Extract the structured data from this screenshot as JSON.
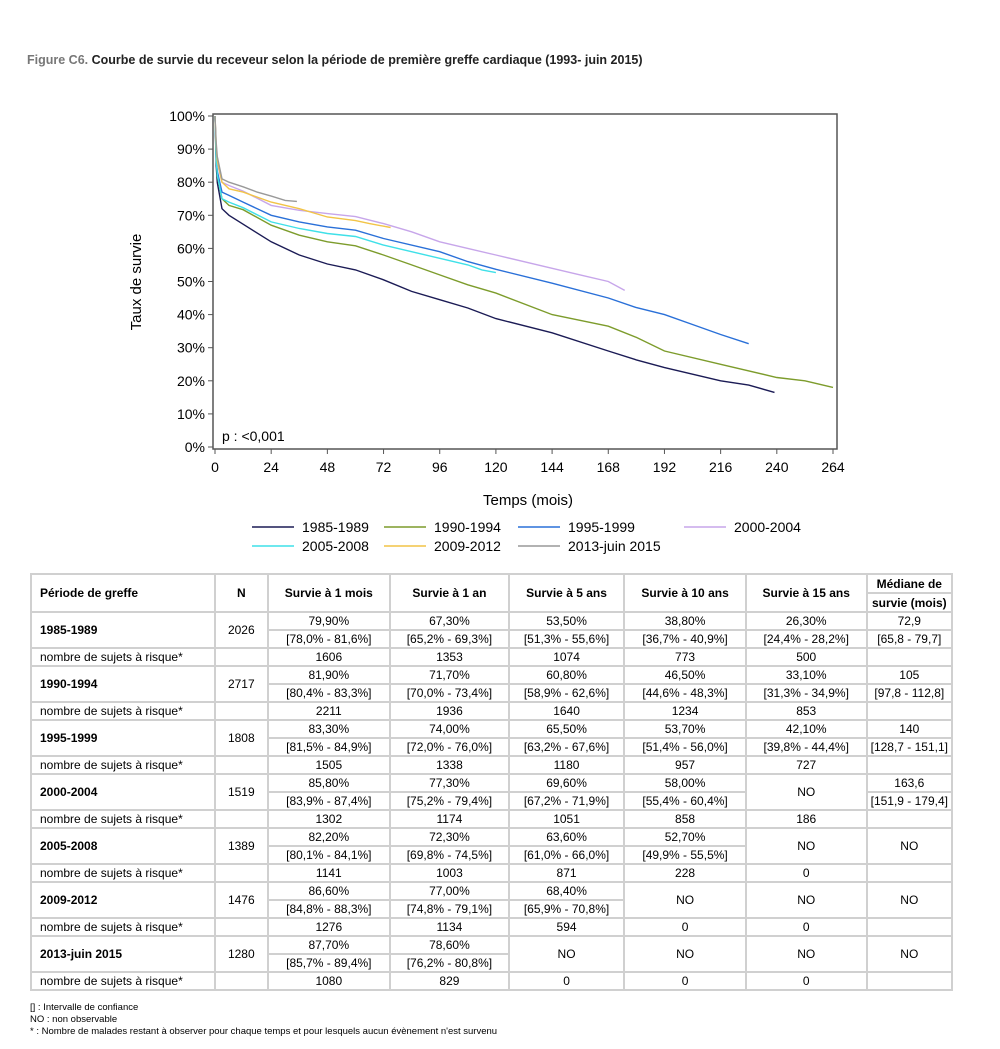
{
  "figure": {
    "label": "Figure C6.",
    "title": "Courbe de survie du receveur selon la période de première greffe cardiaque (1993- juin 2015)"
  },
  "chart_data": {
    "type": "line",
    "title": "Courbe de survie du receveur selon la période de première greffe cardiaque (1993- juin 2015)",
    "xlabel": "Temps (mois)",
    "ylabel": "Taux de survie",
    "xlim": [
      0,
      264
    ],
    "ylim": [
      0,
      100
    ],
    "xticks": [
      0,
      24,
      48,
      72,
      96,
      120,
      144,
      168,
      192,
      216,
      240,
      264
    ],
    "yticks": [
      "0%",
      "10%",
      "20%",
      "30%",
      "40%",
      "50%",
      "60%",
      "70%",
      "80%",
      "90%",
      "100%"
    ],
    "annotation": "p : <0,001",
    "legend_position": "bottom",
    "series": [
      {
        "name": "1985-1989",
        "color": "#1b1b55",
        "points": [
          [
            0,
            100
          ],
          [
            0.5,
            85
          ],
          [
            1,
            79.9
          ],
          [
            3,
            72
          ],
          [
            6,
            70
          ],
          [
            12,
            67.3
          ],
          [
            24,
            62
          ],
          [
            36,
            58
          ],
          [
            48,
            55.3
          ],
          [
            60,
            53.5
          ],
          [
            72,
            50.5
          ],
          [
            84,
            47
          ],
          [
            96,
            44.5
          ],
          [
            108,
            42
          ],
          [
            120,
            38.8
          ],
          [
            144,
            34.5
          ],
          [
            168,
            29
          ],
          [
            180,
            26.3
          ],
          [
            192,
            24
          ],
          [
            216,
            20
          ],
          [
            228,
            18.7
          ],
          [
            239,
            16.5
          ]
        ]
      },
      {
        "name": "1990-1994",
        "color": "#7d9c2c",
        "points": [
          [
            0,
            100
          ],
          [
            0.5,
            88
          ],
          [
            1,
            81.9
          ],
          [
            3,
            75
          ],
          [
            6,
            73
          ],
          [
            12,
            71.7
          ],
          [
            24,
            67
          ],
          [
            36,
            64
          ],
          [
            48,
            62
          ],
          [
            60,
            60.8
          ],
          [
            72,
            58
          ],
          [
            84,
            55
          ],
          [
            96,
            52
          ],
          [
            108,
            49
          ],
          [
            120,
            46.5
          ],
          [
            144,
            40
          ],
          [
            168,
            36.5
          ],
          [
            180,
            33.1
          ],
          [
            192,
            29
          ],
          [
            216,
            25
          ],
          [
            240,
            21
          ],
          [
            252,
            20
          ],
          [
            264,
            18
          ]
        ]
      },
      {
        "name": "1995-1999",
        "color": "#2a70d8",
        "points": [
          [
            0,
            100
          ],
          [
            0.5,
            88
          ],
          [
            1,
            83.3
          ],
          [
            3,
            77
          ],
          [
            6,
            76
          ],
          [
            12,
            74
          ],
          [
            24,
            70
          ],
          [
            36,
            68
          ],
          [
            48,
            66.5
          ],
          [
            60,
            65.5
          ],
          [
            72,
            63
          ],
          [
            96,
            59
          ],
          [
            108,
            56
          ],
          [
            120,
            53.7
          ],
          [
            144,
            49.5
          ],
          [
            168,
            45
          ],
          [
            180,
            42.1
          ],
          [
            192,
            40
          ],
          [
            204,
            37
          ],
          [
            216,
            34
          ],
          [
            228,
            31.2
          ]
        ]
      },
      {
        "name": "2000-2004",
        "color": "#c7a6ea",
        "points": [
          [
            0,
            100
          ],
          [
            0.5,
            90
          ],
          [
            1,
            85.8
          ],
          [
            3,
            80
          ],
          [
            6,
            79
          ],
          [
            12,
            77.3
          ],
          [
            24,
            73
          ],
          [
            36,
            71.5
          ],
          [
            48,
            70.5
          ],
          [
            60,
            69.6
          ],
          [
            72,
            67.5
          ],
          [
            84,
            65
          ],
          [
            96,
            62
          ],
          [
            108,
            60
          ],
          [
            120,
            58
          ],
          [
            144,
            54
          ],
          [
            156,
            52
          ],
          [
            168,
            50
          ],
          [
            175,
            47.3
          ]
        ]
      },
      {
        "name": "2005-2008",
        "color": "#3fe0e8",
        "points": [
          [
            0,
            100
          ],
          [
            0.5,
            87
          ],
          [
            1,
            82.2
          ],
          [
            3,
            75
          ],
          [
            6,
            74
          ],
          [
            12,
            72.3
          ],
          [
            24,
            68
          ],
          [
            36,
            66
          ],
          [
            48,
            64.5
          ],
          [
            60,
            63.6
          ],
          [
            72,
            61
          ],
          [
            84,
            59
          ],
          [
            96,
            57
          ],
          [
            108,
            55
          ],
          [
            114,
            53.5
          ],
          [
            120,
            52.7
          ]
        ]
      },
      {
        "name": "2009-2012",
        "color": "#f2c447",
        "points": [
          [
            0,
            100
          ],
          [
            0.5,
            91
          ],
          [
            1,
            86.6
          ],
          [
            3,
            80
          ],
          [
            6,
            78
          ],
          [
            12,
            77
          ],
          [
            24,
            74
          ],
          [
            36,
            72
          ],
          [
            48,
            69.5
          ],
          [
            60,
            68.4
          ],
          [
            66,
            67.5
          ],
          [
            75,
            66.3
          ]
        ]
      },
      {
        "name": "2013-juin 2015",
        "color": "#999999",
        "points": [
          [
            0,
            100
          ],
          [
            0.5,
            92
          ],
          [
            1,
            87.7
          ],
          [
            3,
            81
          ],
          [
            6,
            80
          ],
          [
            12,
            78.6
          ],
          [
            18,
            77
          ],
          [
            24,
            75.8
          ],
          [
            30,
            74.5
          ],
          [
            35,
            74.2
          ]
        ]
      }
    ]
  },
  "table": {
    "headers": [
      "Période de greffe",
      "N",
      "Survie à 1 mois",
      "Survie à 1 an",
      "Survie à 5 ans",
      "Survie à 10 ans",
      "Survie à 15 ans",
      "Médiane de",
      "survie (mois)"
    ],
    "risk_label": "nombre de sujets à risque*",
    "groups": [
      {
        "period": "1985-1989",
        "n": "2026",
        "values": [
          "79,90%",
          "67,30%",
          "53,50%",
          "38,80%",
          "26,30%",
          "72,9"
        ],
        "ci": [
          "[78,0% - 81,6%]",
          "[65,2% - 69,3%]",
          "[51,3% - 55,6%]",
          "[36,7% - 40,9%]",
          "[24,4% - 28,2%]",
          "[65,8 - 79,7]"
        ],
        "risk": [
          "1606",
          "1353",
          "1074",
          "773",
          "500",
          ""
        ]
      },
      {
        "period": "1990-1994",
        "n": "2717",
        "values": [
          "81,90%",
          "71,70%",
          "60,80%",
          "46,50%",
          "33,10%",
          "105"
        ],
        "ci": [
          "[80,4% - 83,3%]",
          "[70,0% - 73,4%]",
          "[58,9% - 62,6%]",
          "[44,6% - 48,3%]",
          "[31,3% - 34,9%]",
          "[97,8 - 112,8]"
        ],
        "risk": [
          "2211",
          "1936",
          "1640",
          "1234",
          "853",
          ""
        ]
      },
      {
        "period": "1995-1999",
        "n": "1808",
        "values": [
          "83,30%",
          "74,00%",
          "65,50%",
          "53,70%",
          "42,10%",
          "140"
        ],
        "ci": [
          "[81,5% - 84,9%]",
          "[72,0% - 76,0%]",
          "[63,2% - 67,6%]",
          "[51,4% - 56,0%]",
          "[39,8% - 44,4%]",
          "[128,7 - 151,1]"
        ],
        "risk": [
          "1505",
          "1338",
          "1180",
          "957",
          "727",
          ""
        ]
      },
      {
        "period": "2000-2004",
        "n": "1519",
        "values": [
          "85,80%",
          "77,30%",
          "69,60%",
          "58,00%",
          "NO",
          "163,6"
        ],
        "ci": [
          "[83,9% - 87,4%]",
          "[75,2% - 79,4%]",
          "[67,2% - 71,9%]",
          "[55,4% - 60,4%]",
          null,
          "[151,9 - 179,4]"
        ],
        "risk": [
          "1302",
          "1174",
          "1051",
          "858",
          "186",
          ""
        ]
      },
      {
        "period": "2005-2008",
        "n": "1389",
        "values": [
          "82,20%",
          "72,30%",
          "63,60%",
          "52,70%",
          "NO",
          "NO"
        ],
        "ci": [
          "[80,1% - 84,1%]",
          "[69,8% - 74,5%]",
          "[61,0% - 66,0%]",
          "[49,9% - 55,5%]",
          null,
          null
        ],
        "risk": [
          "1141",
          "1003",
          "871",
          "228",
          "0",
          ""
        ]
      },
      {
        "period": "2009-2012",
        "n": "1476",
        "values": [
          "86,60%",
          "77,00%",
          "68,40%",
          "NO",
          "NO",
          "NO"
        ],
        "ci": [
          "[84,8% - 88,3%]",
          "[74,8% - 79,1%]",
          "[65,9% - 70,8%]",
          null,
          null,
          null
        ],
        "risk": [
          "1276",
          "1134",
          "594",
          "0",
          "0",
          ""
        ]
      },
      {
        "period": "2013-juin 2015",
        "n": "1280",
        "values": [
          "87,70%",
          "78,60%",
          "NO",
          "NO",
          "NO",
          "NO"
        ],
        "ci": [
          "[85,7% - 89,4%]",
          "[76,2% - 80,8%]",
          null,
          null,
          null,
          null
        ],
        "risk": [
          "1080",
          "829",
          "0",
          "0",
          "0",
          ""
        ]
      }
    ]
  },
  "notes": [
    "[] : Intervalle de confiance",
    "NO : non observable",
    "* : Nombre de malades restant à observer pour chaque temps et pour lesquels aucun évènement n'est survenu"
  ]
}
